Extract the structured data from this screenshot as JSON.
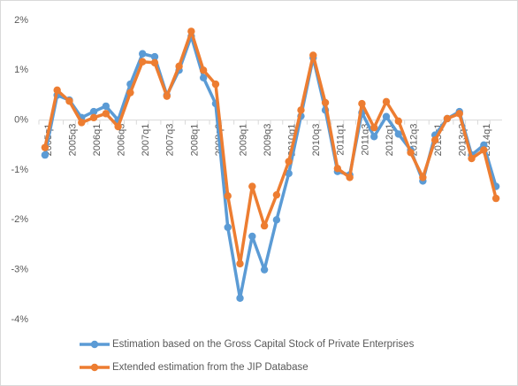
{
  "chart_data": {
    "type": "line",
    "categories": [
      "2005q1",
      null,
      "2005q3",
      null,
      "2006q1",
      null,
      "2006q3",
      null,
      "2007q1",
      null,
      "2007q3",
      null,
      "2008q1",
      null,
      "2008q3",
      null,
      "2009q1",
      null,
      "2009q3",
      null,
      "2010q1",
      null,
      "2010q3",
      null,
      "2011q1",
      null,
      "2011q3",
      null,
      "2012q1",
      null,
      "2012q3",
      null,
      "2013q1",
      null,
      "2013q3",
      null,
      "2014q1",
      null
    ],
    "series": [
      {
        "name": "Estimation based on the Gross Capital Stock of Private Enterprises",
        "color": "#5b9bd5",
        "values": [
          -0.7,
          0.5,
          0.4,
          0.05,
          0.17,
          0.28,
          0.0,
          0.72,
          1.33,
          1.27,
          0.5,
          1.0,
          1.68,
          0.85,
          0.33,
          -2.15,
          -3.57,
          -2.33,
          -3.0,
          -2.0,
          -1.07,
          0.08,
          1.25,
          0.2,
          -1.03,
          -1.1,
          0.15,
          -0.33,
          0.07,
          -0.28,
          -0.6,
          -1.22,
          -0.3,
          0.03,
          0.17,
          -0.7,
          -0.5,
          -1.33
        ]
      },
      {
        "name": "Extended estimation from the JIP Database",
        "color": "#ed7d31",
        "values": [
          -0.55,
          0.6,
          0.38,
          -0.05,
          0.05,
          0.13,
          -0.13,
          0.55,
          1.17,
          1.15,
          0.48,
          1.08,
          1.78,
          1.0,
          0.72,
          -1.52,
          -2.88,
          -1.33,
          -2.12,
          -1.5,
          -0.83,
          0.2,
          1.3,
          0.35,
          -0.97,
          -1.15,
          0.33,
          -0.15,
          0.37,
          -0.02,
          -0.65,
          -1.15,
          -0.4,
          0.03,
          0.13,
          -0.77,
          -0.6,
          -1.57
        ]
      }
    ],
    "ylim": [
      -4,
      2
    ],
    "yticks": [
      {
        "value": -4,
        "label": "-4%"
      },
      {
        "value": -3,
        "label": "-3%"
      },
      {
        "value": -2,
        "label": "-2%"
      },
      {
        "value": -1,
        "label": "-1%"
      },
      {
        "value": 0,
        "label": "0%"
      },
      {
        "value": 1,
        "label": "1%"
      },
      {
        "value": 2,
        "label": "2%"
      }
    ],
    "grid": false,
    "legend": "bottom"
  }
}
